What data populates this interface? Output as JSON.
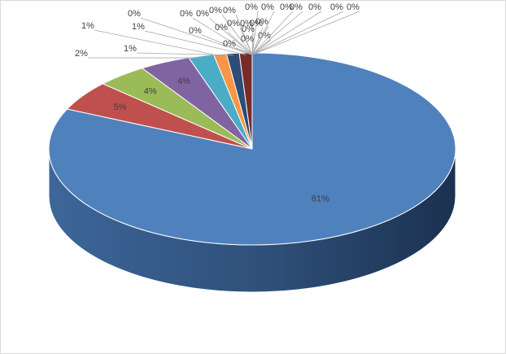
{
  "chart_data": {
    "type": "pie",
    "values": [
      81,
      5,
      4,
      4,
      2,
      1,
      1,
      1,
      0,
      0,
      0,
      0,
      0,
      0,
      0,
      0,
      0,
      0,
      0,
      0,
      0,
      0,
      0,
      0,
      0,
      0,
      0,
      0,
      0,
      0
    ],
    "value_labels": [
      "81%",
      "5%",
      "4%",
      "4%",
      "2%",
      "1%",
      "1%",
      "1%",
      "0%",
      "0%",
      "0%",
      "0%",
      "0%",
      "0%",
      "0%",
      "0%",
      "0%",
      "0%",
      "0%",
      "0%",
      "0%",
      "0%",
      "0%",
      "0%",
      "0%",
      "0%",
      "0%",
      "0%",
      "0%",
      "0%"
    ],
    "colors": [
      "#4F81BD",
      "#C0504D",
      "#9BBB59",
      "#8064A2",
      "#4BACC6",
      "#F79646",
      "#2C4D75",
      "#772C2A",
      "#5F7530",
      "#4D3B62",
      "#276A7C",
      "#B65708",
      "#729ACA",
      "#CD7371",
      "#AFC97A",
      "#9983B5",
      "#6FBDD1",
      "#F9AB6B",
      "#3A6595",
      "#9C3B38",
      "#7D9A46",
      "#664F83",
      "#339AB4",
      "#E4800F",
      "#95B3D7",
      "#D99694",
      "#C3D69B",
      "#B2A1C7",
      "#93CDDD",
      "#FAC090"
    ]
  }
}
